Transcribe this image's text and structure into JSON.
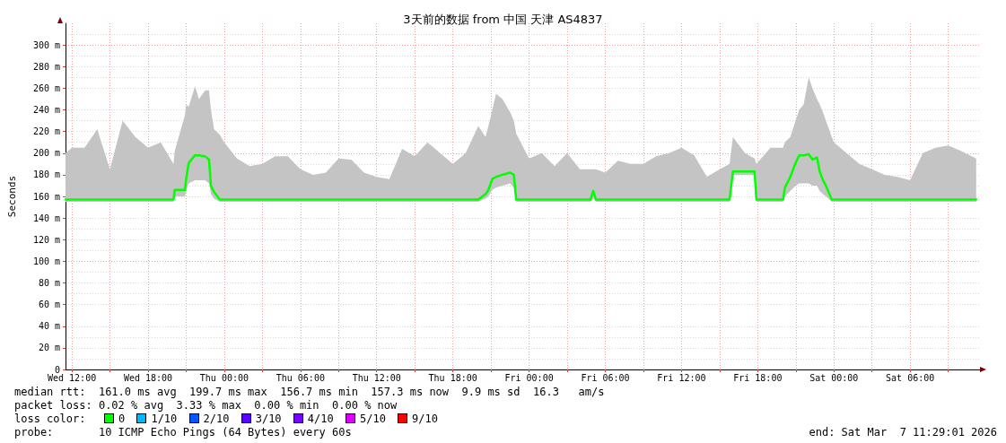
{
  "chart_data": {
    "type": "line",
    "title": "3天前的数据 from 中国 天津 AS4837",
    "ylabel": "Seconds",
    "xlim": [
      "2026-03-04T11:30",
      "2026-03-07T11:30"
    ],
    "ylim": [
      0,
      320
    ],
    "xticks": [
      {
        "value": "2026-03-04T12:00",
        "label": "Wed 12:00"
      },
      {
        "value": "2026-03-04T15:00",
        "label": null
      },
      {
        "value": "2026-03-04T18:00",
        "label": "Wed 18:00"
      },
      {
        "value": "2026-03-04T21:00",
        "label": null
      },
      {
        "value": "2026-03-05T00:00",
        "label": "Thu 00:00"
      },
      {
        "value": "2026-03-05T03:00",
        "label": null
      },
      {
        "value": "2026-03-05T06:00",
        "label": "Thu 06:00"
      },
      {
        "value": "2026-03-05T09:00",
        "label": null
      },
      {
        "value": "2026-03-05T12:00",
        "label": "Thu 12:00"
      },
      {
        "value": "2026-03-05T15:00",
        "label": null
      },
      {
        "value": "2026-03-05T18:00",
        "label": "Thu 18:00"
      },
      {
        "value": "2026-03-05T21:00",
        "label": null
      },
      {
        "value": "2026-03-06T00:00",
        "label": "Fri 00:00"
      },
      {
        "value": "2026-03-06T03:00",
        "label": null
      },
      {
        "value": "2026-03-06T06:00",
        "label": "Fri 06:00"
      },
      {
        "value": "2026-03-06T09:00",
        "label": null
      },
      {
        "value": "2026-03-06T12:00",
        "label": "Fri 12:00"
      },
      {
        "value": "2026-03-06T15:00",
        "label": null
      },
      {
        "value": "2026-03-06T18:00",
        "label": "Fri 18:00"
      },
      {
        "value": "2026-03-06T21:00",
        "label": null
      },
      {
        "value": "2026-03-07T00:00",
        "label": "Sat 00:00"
      },
      {
        "value": "2026-03-07T03:00",
        "label": null
      },
      {
        "value": "2026-03-07T06:00",
        "label": "Sat 06:00"
      },
      {
        "value": "2026-03-07T09:00",
        "label": null
      }
    ],
    "yticks": [
      0,
      {
        "value": 20,
        "label": "20 m"
      },
      {
        "value": 40,
        "label": "40 m"
      },
      {
        "value": 60,
        "label": "60 m"
      },
      {
        "value": 80,
        "label": "80 m"
      },
      {
        "value": 100,
        "label": "100 m"
      },
      {
        "value": 120,
        "label": "120 m"
      },
      {
        "value": 140,
        "label": "140 m"
      },
      {
        "value": 160,
        "label": "160 m"
      },
      {
        "value": 180,
        "label": "180 m"
      },
      {
        "value": 200,
        "label": "200 m"
      },
      {
        "value": 220,
        "label": "220 m"
      },
      {
        "value": 240,
        "label": "240 m"
      },
      {
        "value": 260,
        "label": "260 m"
      },
      {
        "value": 280,
        "label": "280 m"
      },
      {
        "value": 300,
        "label": "300 m"
      }
    ],
    "grid": true,
    "marker": "none",
    "line_style": "solid",
    "series": [
      {
        "color": "#00ff00",
        "x": [
          "2026-03-04T11:30",
          "2026-03-04T12:00",
          "2026-03-04T13:00",
          "2026-03-04T14:00",
          "2026-03-04T15:00",
          "2026-03-04T16:00",
          "2026-03-04T17:00",
          "2026-03-04T18:00",
          "2026-03-04T19:00",
          "2026-03-04T20:00",
          "2026-03-04T20:06",
          "2026-03-04T20:54",
          "2026-03-04T21:00",
          "2026-03-04T21:12",
          "2026-03-04T21:42",
          "2026-03-04T22:00",
          "2026-03-04T22:30",
          "2026-03-04T22:48",
          "2026-03-04T22:57",
          "2026-03-04T23:12",
          "2026-03-04T23:39",
          "2026-03-05T00:00",
          "2026-03-05T01:00",
          "2026-03-05T02:00",
          "2026-03-05T03:00",
          "2026-03-05T04:00",
          "2026-03-05T05:00",
          "2026-03-05T06:00",
          "2026-03-05T07:00",
          "2026-03-05T08:00",
          "2026-03-05T09:00",
          "2026-03-05T10:00",
          "2026-03-05T11:00",
          "2026-03-05T12:00",
          "2026-03-05T13:00",
          "2026-03-05T14:00",
          "2026-03-05T15:00",
          "2026-03-05T16:00",
          "2026-03-05T17:00",
          "2026-03-05T18:00",
          "2026-03-05T19:00",
          "2026-03-05T20:00",
          "2026-03-05T20:34",
          "2026-03-05T20:48",
          "2026-03-05T21:06",
          "2026-03-05T21:24",
          "2026-03-05T21:54",
          "2026-03-05T22:30",
          "2026-03-05T22:48",
          "2026-03-05T22:59",
          "2026-03-06T00:00",
          "2026-03-06T01:00",
          "2026-03-06T02:00",
          "2026-03-06T03:00",
          "2026-03-06T04:00",
          "2026-03-06T04:50",
          "2026-03-06T05:03",
          "2026-03-06T05:16",
          "2026-03-06T06:00",
          "2026-03-06T07:00",
          "2026-03-06T08:00",
          "2026-03-06T09:00",
          "2026-03-06T10:00",
          "2026-03-06T11:00",
          "2026-03-06T12:00",
          "2026-03-06T13:00",
          "2026-03-06T14:00",
          "2026-03-06T15:00",
          "2026-03-06T15:47",
          "2026-03-06T16:03",
          "2026-03-06T17:00",
          "2026-03-06T17:45",
          "2026-03-06T17:54",
          "2026-03-06T19:00",
          "2026-03-06T20:00",
          "2026-03-06T20:08",
          "2026-03-06T20:34",
          "2026-03-06T20:59",
          "2026-03-06T21:16",
          "2026-03-06T21:37",
          "2026-03-06T22:01",
          "2026-03-06T22:19",
          "2026-03-06T22:40",
          "2026-03-06T22:53",
          "2026-03-06T23:08",
          "2026-03-06T23:22",
          "2026-03-06T23:50",
          "2026-03-07T00:00",
          "2026-03-07T01:00",
          "2026-03-07T02:00",
          "2026-03-07T03:00",
          "2026-03-07T04:00",
          "2026-03-07T05:00",
          "2026-03-07T06:00",
          "2026-03-07T07:00",
          "2026-03-07T08:00",
          "2026-03-07T09:00",
          "2026-03-07T10:00",
          "2026-03-07T11:12"
        ],
        "values": [
          157,
          157,
          157,
          157,
          157,
          157,
          157,
          157,
          157,
          157,
          166,
          166,
          176,
          191,
          198,
          198,
          197,
          194,
          170,
          164,
          157,
          157,
          157,
          157,
          157,
          157,
          157,
          157,
          157,
          157,
          157,
          157,
          157,
          157,
          157,
          157,
          157,
          157,
          157,
          157,
          157,
          157,
          162,
          166,
          176,
          178,
          180,
          182,
          180,
          157,
          157,
          157,
          157,
          157,
          157,
          157,
          165,
          157,
          157,
          157,
          157,
          157,
          157,
          157,
          157,
          157,
          157,
          157,
          157,
          183,
          183,
          183,
          157,
          157,
          157,
          168,
          178,
          191,
          198,
          198,
          199,
          194,
          196,
          183,
          175,
          170,
          157,
          157,
          157,
          157,
          157,
          157,
          157,
          157,
          157,
          157,
          157,
          157,
          157
        ],
        "lower": [
          155,
          155,
          155,
          155,
          155,
          155,
          155,
          155,
          155,
          155,
          160,
          160,
          165,
          172,
          175,
          175,
          175,
          172,
          162,
          158,
          155,
          155,
          155,
          155,
          155,
          155,
          155,
          155,
          155,
          155,
          155,
          155,
          155,
          155,
          155,
          155,
          155,
          155,
          155,
          155,
          155,
          155,
          158,
          160,
          166,
          168,
          170,
          172,
          168,
          155,
          155,
          155,
          155,
          155,
          155,
          155,
          158,
          155,
          155,
          155,
          155,
          155,
          155,
          155,
          155,
          155,
          155,
          155,
          155,
          180,
          180,
          180,
          155,
          155,
          155,
          160,
          165,
          170,
          172,
          172,
          172,
          170,
          170,
          165,
          162,
          160,
          155,
          155,
          155,
          155,
          155,
          155,
          155,
          155,
          155,
          155,
          155,
          155,
          155
        ],
        "upper": [
          200,
          205,
          205,
          222,
          185,
          230,
          215,
          205,
          210,
          190,
          202,
          235,
          245,
          243,
          262,
          250,
          258,
          258,
          240,
          222,
          217,
          210,
          195,
          188,
          190,
          197,
          197,
          185,
          180,
          182,
          195,
          194,
          182,
          178,
          176,
          204,
          197,
          210,
          200,
          190,
          200,
          225,
          215,
          225,
          240,
          255,
          250,
          238,
          230,
          218,
          195,
          200,
          188,
          200,
          185,
          185,
          185,
          185,
          182,
          193,
          190,
          190,
          197,
          200,
          205,
          198,
          178,
          185,
          190,
          215,
          200,
          195,
          190,
          205,
          205,
          210,
          215,
          230,
          240,
          245,
          270,
          260,
          250,
          245,
          238,
          230,
          215,
          210,
          200,
          190,
          185,
          180,
          178,
          175,
          200,
          205,
          207,
          202,
          195
        ]
      }
    ],
    "annotations": [
      "median rtt:  161.0 ms avg  199.7 ms max  156.7 ms min  157.3 ms now  9.9 ms sd  16.3   am/s",
      "packet loss: 0.02 % avg  3.33 % max  0.00 % min  0.00 % now",
      "loss color:  0  1/10  2/10  3/10  4/10  5/10  9/10",
      "probe:       10 ICMP Echo Pings (64 Bytes) every 60s",
      "end: Sat Mar  7 11:29:01 2026"
    ]
  }
}
